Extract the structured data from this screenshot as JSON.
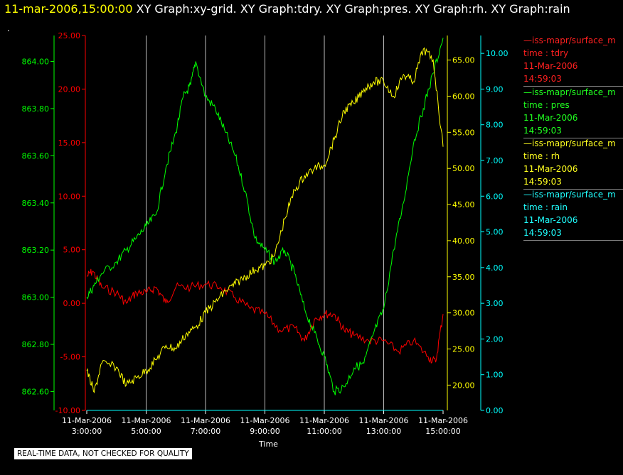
{
  "header": {
    "timestamp": "11-mar-2006,15:00:00",
    "titles": "XY Graph:xy-grid.  XY Graph:tdry.  XY Graph:pres.  XY Graph:rh.  XY Graph:rain",
    "dot": "."
  },
  "disclaimer": "REAL-TIME DATA, NOT CHECKED FOR QUALITY",
  "colors": {
    "tdry": "#ff0000",
    "pres": "#00ff00",
    "rh": "#ffff00",
    "rain": "#00ffff",
    "grid": "#ffffff"
  },
  "legend": [
    {
      "name": "—iss-mapr/surface_m",
      "var": "time : tdry",
      "date": "11-Mar-2006",
      "time": "14:59:03",
      "color": "#ff2020"
    },
    {
      "name": "—iss-mapr/surface_m",
      "var": "time : pres",
      "date": "11-Mar-2006",
      "time": "14:59:03",
      "color": "#20ff20"
    },
    {
      "name": "—iss-mapr/surface_m",
      "var": "time : rh",
      "date": "11-Mar-2006",
      "time": "14:59:03",
      "color": "#ffff20"
    },
    {
      "name": "—iss-mapr/surface_m",
      "var": "time : rain",
      "date": "11-Mar-2006",
      "time": "14:59:03",
      "color": "#20ffff"
    }
  ],
  "chart_data": {
    "type": "line",
    "xlabel": "Time",
    "xrange": [
      "03:00",
      "15:00"
    ],
    "x_ticks": [
      {
        "date": "11-Mar-2006",
        "time": "3:00:00",
        "value": "03:00"
      },
      {
        "date": "11-Mar-2006",
        "time": "5:00:00",
        "value": "05:00"
      },
      {
        "date": "11-Mar-2006",
        "time": "7:00:00",
        "value": "07:00"
      },
      {
        "date": "11-Mar-2006",
        "time": "9:00:00",
        "value": "09:00"
      },
      {
        "date": "11-Mar-2006",
        "time": "11:00:00",
        "value": "11:00"
      },
      {
        "date": "11-Mar-2006",
        "time": "13:00:00",
        "value": "13:00"
      },
      {
        "date": "11-Mar-2006",
        "time": "15:00:00",
        "value": "15:00"
      }
    ],
    "grid": "vertical",
    "axes": [
      {
        "id": "pres",
        "side": "left-outer",
        "range": [
          862.52,
          864.11
        ],
        "ticks": [
          "862.60",
          "862.80",
          "863.00",
          "863.20",
          "863.40",
          "863.60",
          "863.80",
          "864.00"
        ],
        "color": "#00ff00"
      },
      {
        "id": "tdry",
        "side": "left-inner",
        "range": [
          -10,
          25
        ],
        "ticks": [
          "-10.00",
          "-5.00",
          "0.00",
          "5.00",
          "10.00",
          "15.00",
          "20.00",
          "25.00"
        ],
        "color": "#ff0000"
      },
      {
        "id": "rh",
        "side": "right-inner",
        "range": [
          16.5,
          68.4
        ],
        "ticks": [
          "20.00",
          "25.00",
          "30.00",
          "35.00",
          "40.00",
          "45.00",
          "50.00",
          "55.00",
          "60.00",
          "65.00"
        ],
        "color": "#ffff00"
      },
      {
        "id": "rain",
        "side": "right-outer",
        "range": [
          0,
          10.5
        ],
        "ticks": [
          "0.00",
          "1.00",
          "2.00",
          "3.00",
          "4.00",
          "5.00",
          "6.00",
          "7.00",
          "8.00",
          "9.00",
          "10.00"
        ],
        "color": "#00ffff"
      }
    ],
    "series": [
      {
        "id": "tdry",
        "axis": "tdry",
        "color": "#ff0000",
        "x": [
          "03:00",
          "03:12",
          "03:30",
          "04:00",
          "04:20",
          "04:40",
          "05:00",
          "05:20",
          "05:40",
          "06:00",
          "06:30",
          "07:00",
          "07:30",
          "08:00",
          "08:30",
          "09:00",
          "09:30",
          "10:00",
          "10:20",
          "10:40",
          "11:00",
          "11:20",
          "11:40",
          "12:00",
          "12:30",
          "13:00",
          "13:30",
          "14:00",
          "14:30",
          "14:45",
          "15:00"
        ],
        "y": [
          2.5,
          3.0,
          1.5,
          1.0,
          0.0,
          1.0,
          1.0,
          1.5,
          0.0,
          1.5,
          1.5,
          1.8,
          1.5,
          0.5,
          -0.5,
          -1.0,
          -2.5,
          -2.3,
          -3.5,
          -1.5,
          -1.0,
          -1.0,
          -2.5,
          -3.0,
          -3.5,
          -3.5,
          -4.5,
          -3.5,
          -5.0,
          -5.5,
          -1.0
        ]
      },
      {
        "id": "pres",
        "axis": "pres",
        "color": "#00ff00",
        "x": [
          "03:00",
          "03:15",
          "03:30",
          "04:00",
          "04:20",
          "04:40",
          "05:00",
          "05:20",
          "05:40",
          "06:00",
          "06:15",
          "06:30",
          "06:40",
          "07:00",
          "07:20",
          "07:40",
          "08:00",
          "08:20",
          "08:40",
          "09:00",
          "09:20",
          "09:40",
          "10:00",
          "10:20",
          "10:40",
          "11:00",
          "11:20",
          "11:40",
          "12:00",
          "12:20",
          "12:40",
          "13:00",
          "13:20",
          "13:40",
          "14:00",
          "14:20",
          "14:40",
          "15:00"
        ],
        "y": [
          863.0,
          863.05,
          863.1,
          863.15,
          863.2,
          863.25,
          863.3,
          863.35,
          863.55,
          863.7,
          863.85,
          863.9,
          864.0,
          863.85,
          863.8,
          863.7,
          863.6,
          863.45,
          863.25,
          863.2,
          863.15,
          863.2,
          863.1,
          862.95,
          862.85,
          862.75,
          862.6,
          862.62,
          862.7,
          862.72,
          862.85,
          862.95,
          863.2,
          863.4,
          863.65,
          863.8,
          863.95,
          864.1
        ]
      },
      {
        "id": "rh",
        "axis": "rh",
        "color": "#ffff00",
        "x": [
          "03:00",
          "03:15",
          "03:30",
          "04:00",
          "04:20",
          "04:40",
          "05:00",
          "05:20",
          "05:40",
          "06:00",
          "06:20",
          "06:40",
          "07:00",
          "07:20",
          "07:40",
          "08:00",
          "08:20",
          "08:40",
          "09:00",
          "09:20",
          "09:40",
          "10:00",
          "10:20",
          "10:40",
          "11:00",
          "11:20",
          "11:40",
          "12:00",
          "12:20",
          "12:40",
          "13:00",
          "13:20",
          "13:40",
          "14:00",
          "14:20",
          "14:40",
          "15:00"
        ],
        "y": [
          22.0,
          19.0,
          23.0,
          22.5,
          20.0,
          21.0,
          22.0,
          23.5,
          25.5,
          25.0,
          27.0,
          28.0,
          30.0,
          31.5,
          33.0,
          34.0,
          35.0,
          36.0,
          36.5,
          38.0,
          43.0,
          47.0,
          49.0,
          50.0,
          50.5,
          54.0,
          58.0,
          59.0,
          61.0,
          62.0,
          62.0,
          60.0,
          63.0,
          62.0,
          66.5,
          65.0,
          53.0
        ]
      },
      {
        "id": "rain",
        "axis": "rain",
        "color": "#00ffff",
        "x": [
          "03:00",
          "15:00"
        ],
        "y": [
          0.0,
          0.0
        ]
      }
    ]
  }
}
